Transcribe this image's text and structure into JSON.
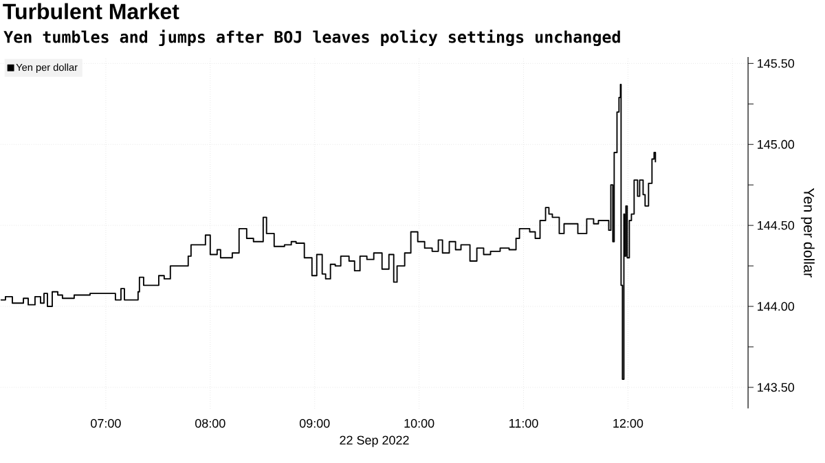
{
  "chart_data": {
    "type": "step",
    "title": "Turbulent Market",
    "subtitle": "Yen tumbles and jumps after BOJ leaves policy settings unchanged",
    "xlabel": "22 Sep 2022",
    "ylabel": "Yen per dollar",
    "x": [
      5.993,
      6.039,
      6.105,
      6.211,
      6.257,
      6.322,
      6.375,
      6.408,
      6.441,
      6.487,
      6.54,
      6.585,
      6.697,
      6.849,
      7.0,
      7.092,
      7.145,
      7.178,
      7.309,
      7.322,
      7.362,
      7.507,
      7.559,
      7.618,
      7.724,
      7.789,
      7.816,
      7.921,
      7.954,
      8.0,
      8.066,
      8.099,
      8.211,
      8.276,
      8.349,
      8.414,
      8.507,
      8.539,
      8.612,
      8.711,
      8.776,
      8.822,
      8.901,
      8.974,
      9.02,
      9.072,
      9.105,
      9.151,
      9.197,
      9.25,
      9.329,
      9.382,
      9.434,
      9.5,
      9.566,
      9.645,
      9.711,
      9.757,
      9.789,
      9.862,
      9.921,
      9.987,
      10.053,
      10.125,
      10.184,
      10.224,
      10.289,
      10.349,
      10.401,
      10.487,
      10.553,
      10.618,
      10.684,
      10.776,
      10.862,
      10.928,
      10.961,
      11.059,
      11.112,
      11.158,
      11.211,
      11.243,
      11.276,
      11.342,
      11.388,
      11.52,
      11.605,
      11.671,
      11.717,
      11.816,
      11.836,
      11.855,
      11.868,
      11.895,
      11.914,
      11.928,
      11.934,
      11.947,
      11.961,
      11.967,
      11.98,
      11.993,
      12.013,
      12.033,
      12.059,
      12.092,
      12.112,
      12.145,
      12.164,
      12.197,
      12.23,
      12.25,
      12.263
    ],
    "series": [
      {
        "name": "Yen per dollar",
        "color": "#000000",
        "values": [
          144.04,
          144.06,
          144.02,
          144.05,
          144.01,
          144.06,
          144.02,
          144.08,
          144.0,
          144.09,
          144.07,
          144.05,
          144.07,
          144.08,
          144.08,
          144.04,
          144.11,
          144.04,
          144.09,
          144.18,
          144.13,
          144.19,
          144.17,
          144.25,
          144.25,
          144.31,
          144.38,
          144.38,
          144.44,
          144.32,
          144.35,
          144.3,
          144.33,
          144.48,
          144.42,
          144.4,
          144.55,
          144.45,
          144.37,
          144.38,
          144.4,
          144.39,
          144.3,
          144.19,
          144.32,
          144.2,
          144.17,
          144.26,
          144.25,
          144.31,
          144.28,
          144.22,
          144.31,
          144.29,
          144.33,
          144.23,
          144.32,
          144.15,
          144.25,
          144.33,
          144.46,
          144.4,
          144.36,
          144.34,
          144.41,
          144.33,
          144.4,
          144.35,
          144.38,
          144.28,
          144.36,
          144.32,
          144.34,
          144.36,
          144.35,
          144.42,
          144.48,
          144.46,
          144.42,
          144.53,
          144.61,
          144.57,
          144.55,
          144.45,
          144.51,
          144.45,
          144.54,
          144.51,
          144.53,
          144.47,
          144.75,
          144.4,
          144.95,
          145.2,
          145.29,
          145.37,
          144.13,
          143.55,
          144.57,
          144.31,
          144.62,
          144.3,
          144.53,
          144.57,
          144.78,
          144.68,
          144.78,
          144.69,
          144.62,
          144.76,
          144.91,
          144.95,
          144.89
        ]
      }
    ],
    "xlim": [
      5.993,
      13.15
    ],
    "ylim": [
      143.37,
      145.54
    ],
    "xticks": [
      {
        "value": 7,
        "label": "07:00"
      },
      {
        "value": 8,
        "label": "08:00"
      },
      {
        "value": 9,
        "label": "09:00"
      },
      {
        "value": 10,
        "label": "10:00"
      },
      {
        "value": 11,
        "label": "11:00"
      },
      {
        "value": 12,
        "label": "12:00"
      },
      {
        "value": 13,
        "label": null
      }
    ],
    "yticks": [
      {
        "value": 143.5,
        "label": "143.50"
      },
      {
        "value": 143.75,
        "label": null
      },
      {
        "value": 144,
        "label": "144.00"
      },
      {
        "value": 144.25,
        "label": null
      },
      {
        "value": 144.5,
        "label": "144.50"
      },
      {
        "value": 144.75,
        "label": null
      },
      {
        "value": 145,
        "label": "145.00"
      },
      {
        "value": 145.25,
        "label": null
      },
      {
        "value": 145.5,
        "label": "145.50"
      }
    ],
    "grid": true,
    "legend": "top left"
  }
}
